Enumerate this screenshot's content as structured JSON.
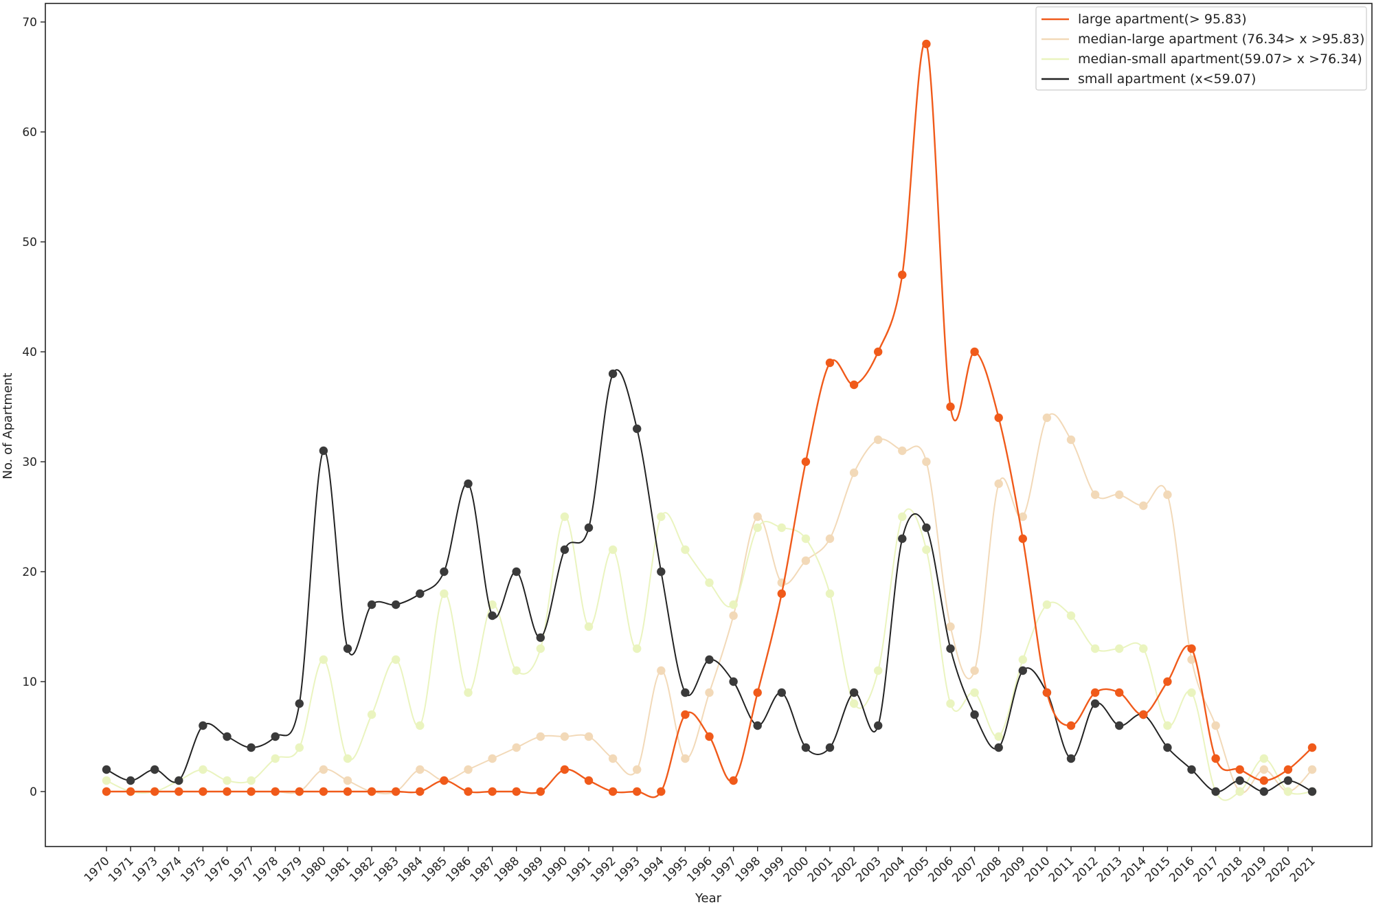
{
  "chart_data": {
    "type": "line",
    "xlabel": "Year",
    "ylabel": "No. of Apartment",
    "categories": [
      "1970",
      "1971",
      "1973",
      "1974",
      "1975",
      "1976",
      "1977",
      "1978",
      "1979",
      "1980",
      "1981",
      "1982",
      "1983",
      "1984",
      "1985",
      "1986",
      "1987",
      "1988",
      "1989",
      "1990",
      "1991",
      "1992",
      "1993",
      "1994",
      "1995",
      "1996",
      "1997",
      "1998",
      "1999",
      "2000",
      "2001",
      "2002",
      "2003",
      "2004",
      "2005",
      "2006",
      "2007",
      "2008",
      "2009",
      "2010",
      "2011",
      "2012",
      "2013",
      "2014",
      "2015",
      "2016",
      "2017",
      "2018",
      "2019",
      "2020",
      "2021"
    ],
    "yticks": [
      0,
      10,
      20,
      30,
      40,
      50,
      60,
      70
    ],
    "ylim": [
      -5,
      72
    ],
    "grid": false,
    "legend_position": "top-right",
    "smoothed": true,
    "series": [
      {
        "name": "large apartment(> 95.83)",
        "color": "#f05a1a",
        "values": [
          0,
          0,
          0,
          0,
          0,
          0,
          0,
          0,
          0,
          0,
          0,
          0,
          0,
          0,
          1,
          0,
          0,
          0,
          0,
          2,
          1,
          0,
          0,
          0,
          7,
          5,
          1,
          9,
          18,
          30,
          39,
          37,
          40,
          47,
          68,
          35,
          40,
          34,
          23,
          9,
          6,
          9,
          9,
          7,
          10,
          13,
          3,
          2,
          1,
          2,
          4
        ]
      },
      {
        "name": "median-large apartment (76.34> x >95.83)",
        "color": "#f2d9b8",
        "values": [
          0,
          0,
          0,
          0,
          0,
          0,
          0,
          0,
          0,
          2,
          1,
          0,
          0,
          2,
          1,
          2,
          3,
          4,
          5,
          5,
          5,
          3,
          2,
          11,
          3,
          9,
          16,
          25,
          19,
          21,
          23,
          29,
          32,
          31,
          30,
          15,
          11,
          28,
          25,
          34,
          32,
          27,
          27,
          26,
          27,
          12,
          6,
          0,
          2,
          0,
          2
        ]
      },
      {
        "name": "median-small apartment(59.07> x >76.34)",
        "color": "#eaf4bf",
        "values": [
          1,
          0,
          0,
          1,
          2,
          1,
          1,
          3,
          4,
          12,
          3,
          7,
          12,
          6,
          18,
          9,
          17,
          11,
          13,
          25,
          15,
          22,
          13,
          25,
          22,
          19,
          17,
          24,
          24,
          23,
          18,
          8,
          11,
          25,
          22,
          8,
          9,
          5,
          12,
          17,
          16,
          13,
          13,
          13,
          6,
          9,
          0,
          0,
          3,
          0,
          0
        ]
      },
      {
        "name": "small apartment (x<59.07)",
        "color": "#222222",
        "marker_color": "#3a3a3a",
        "values": [
          2,
          1,
          2,
          1,
          6,
          5,
          4,
          5,
          8,
          31,
          13,
          17,
          17,
          18,
          20,
          28,
          16,
          20,
          14,
          22,
          24,
          38,
          33,
          20,
          9,
          12,
          10,
          6,
          9,
          4,
          4,
          9,
          6,
          23,
          24,
          13,
          7,
          4,
          11,
          9,
          3,
          8,
          6,
          7,
          4,
          2,
          0,
          1,
          0,
          1,
          0
        ]
      }
    ]
  }
}
